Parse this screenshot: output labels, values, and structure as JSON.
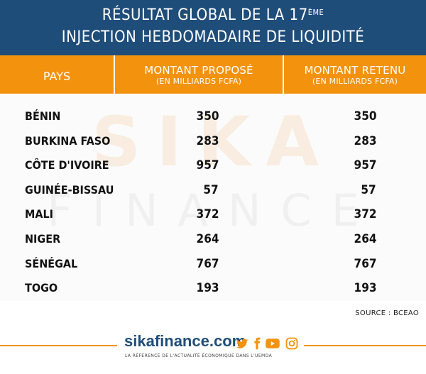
{
  "header": {
    "line1_main": "RÉSULTAT GLOBAL DE LA 17",
    "line1_sup": "ÈME",
    "line2": "INJECTION HEBDOMADAIRE DE LIQUIDITÉ"
  },
  "columns": {
    "pays": "PAYS",
    "propose_title": "MONTANT PROPOSÉ",
    "propose_sub": "(EN MILLIARDS FCFA)",
    "retenu_title": "MONTANT RETENU",
    "retenu_sub": "(EN MILLIARDS FCFA)"
  },
  "watermark": {
    "top": "SIKA",
    "bottom": "FINANCE"
  },
  "rows": [
    {
      "country": "BÉNIN",
      "propose": "350",
      "retenu": "350"
    },
    {
      "country": "BURKINA FASO",
      "propose": "283",
      "retenu": "283"
    },
    {
      "country": "CÔTE D'IVOIRE",
      "propose": "957",
      "retenu": "957"
    },
    {
      "country": "GUINÉE-BISSAU",
      "propose": "57",
      "retenu": "57"
    },
    {
      "country": "MALI",
      "propose": "372",
      "retenu": "372"
    },
    {
      "country": "NIGER",
      "propose": "264",
      "retenu": "264"
    },
    {
      "country": "SÉNÉGAL",
      "propose": "767",
      "retenu": "767"
    },
    {
      "country": "TOGO",
      "propose": "193",
      "retenu": "193"
    }
  ],
  "source": "SOURCE : BCEAO",
  "footer": {
    "brand": "sikafinance.com",
    "tagline": "LA RÉFÉRENCE DE L'ACTUALITÉ ÉCONOMIQUE DANS L'UEMOA",
    "social": [
      "twitter-icon",
      "facebook-icon",
      "youtube-icon",
      "instagram-icon"
    ],
    "accent": "#f2920d",
    "brand_color": "#1f4d7a"
  }
}
